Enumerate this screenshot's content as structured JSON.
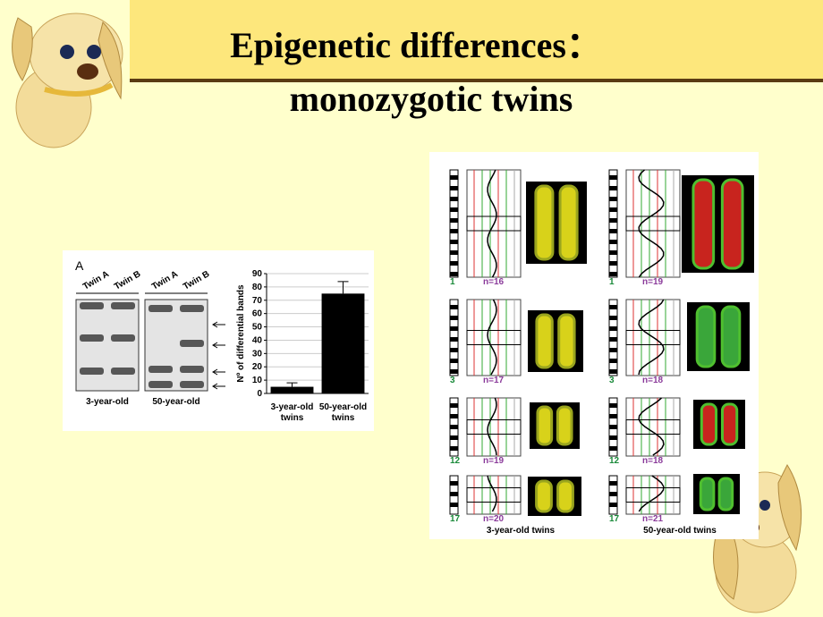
{
  "title": {
    "line1": "Epigenetic differences：",
    "line2": "monozygotic twins"
  },
  "figure_a": {
    "panel_label": "A",
    "gel": {
      "lanes": [
        "Twin A",
        "Twin B",
        "Twin A",
        "Twin B"
      ],
      "groups": [
        "3-year-old",
        "50-year-old"
      ]
    },
    "chart": {
      "type": "bar",
      "ylabel": "Nº of differential bands",
      "categories": [
        [
          "3-year-old",
          "twins"
        ],
        [
          "50-year-old",
          "twins"
        ]
      ],
      "values": [
        5,
        75
      ],
      "errors": [
        3,
        9
      ],
      "color": "#000000",
      "ylim": [
        0,
        90
      ],
      "yticks": [
        0,
        10,
        20,
        30,
        40,
        50,
        60,
        70,
        80,
        90
      ],
      "grid": true
    }
  },
  "figure_b": {
    "columns": [
      {
        "caption": "3-year-old twins",
        "rows": [
          {
            "chromosome": "1",
            "n": "n=16"
          },
          {
            "chromosome": "3",
            "n": "n=17"
          },
          {
            "chromosome": "12",
            "n": "n=19"
          },
          {
            "chromosome": "17",
            "n": "n=20"
          }
        ]
      },
      {
        "caption": "50-year-old twins",
        "rows": [
          {
            "chromosome": "1",
            "n": "n=19"
          },
          {
            "chromosome": "3",
            "n": "n=18"
          },
          {
            "chromosome": "12",
            "n": "n=18"
          },
          {
            "chromosome": "17",
            "n": "n=21"
          }
        ]
      }
    ]
  }
}
